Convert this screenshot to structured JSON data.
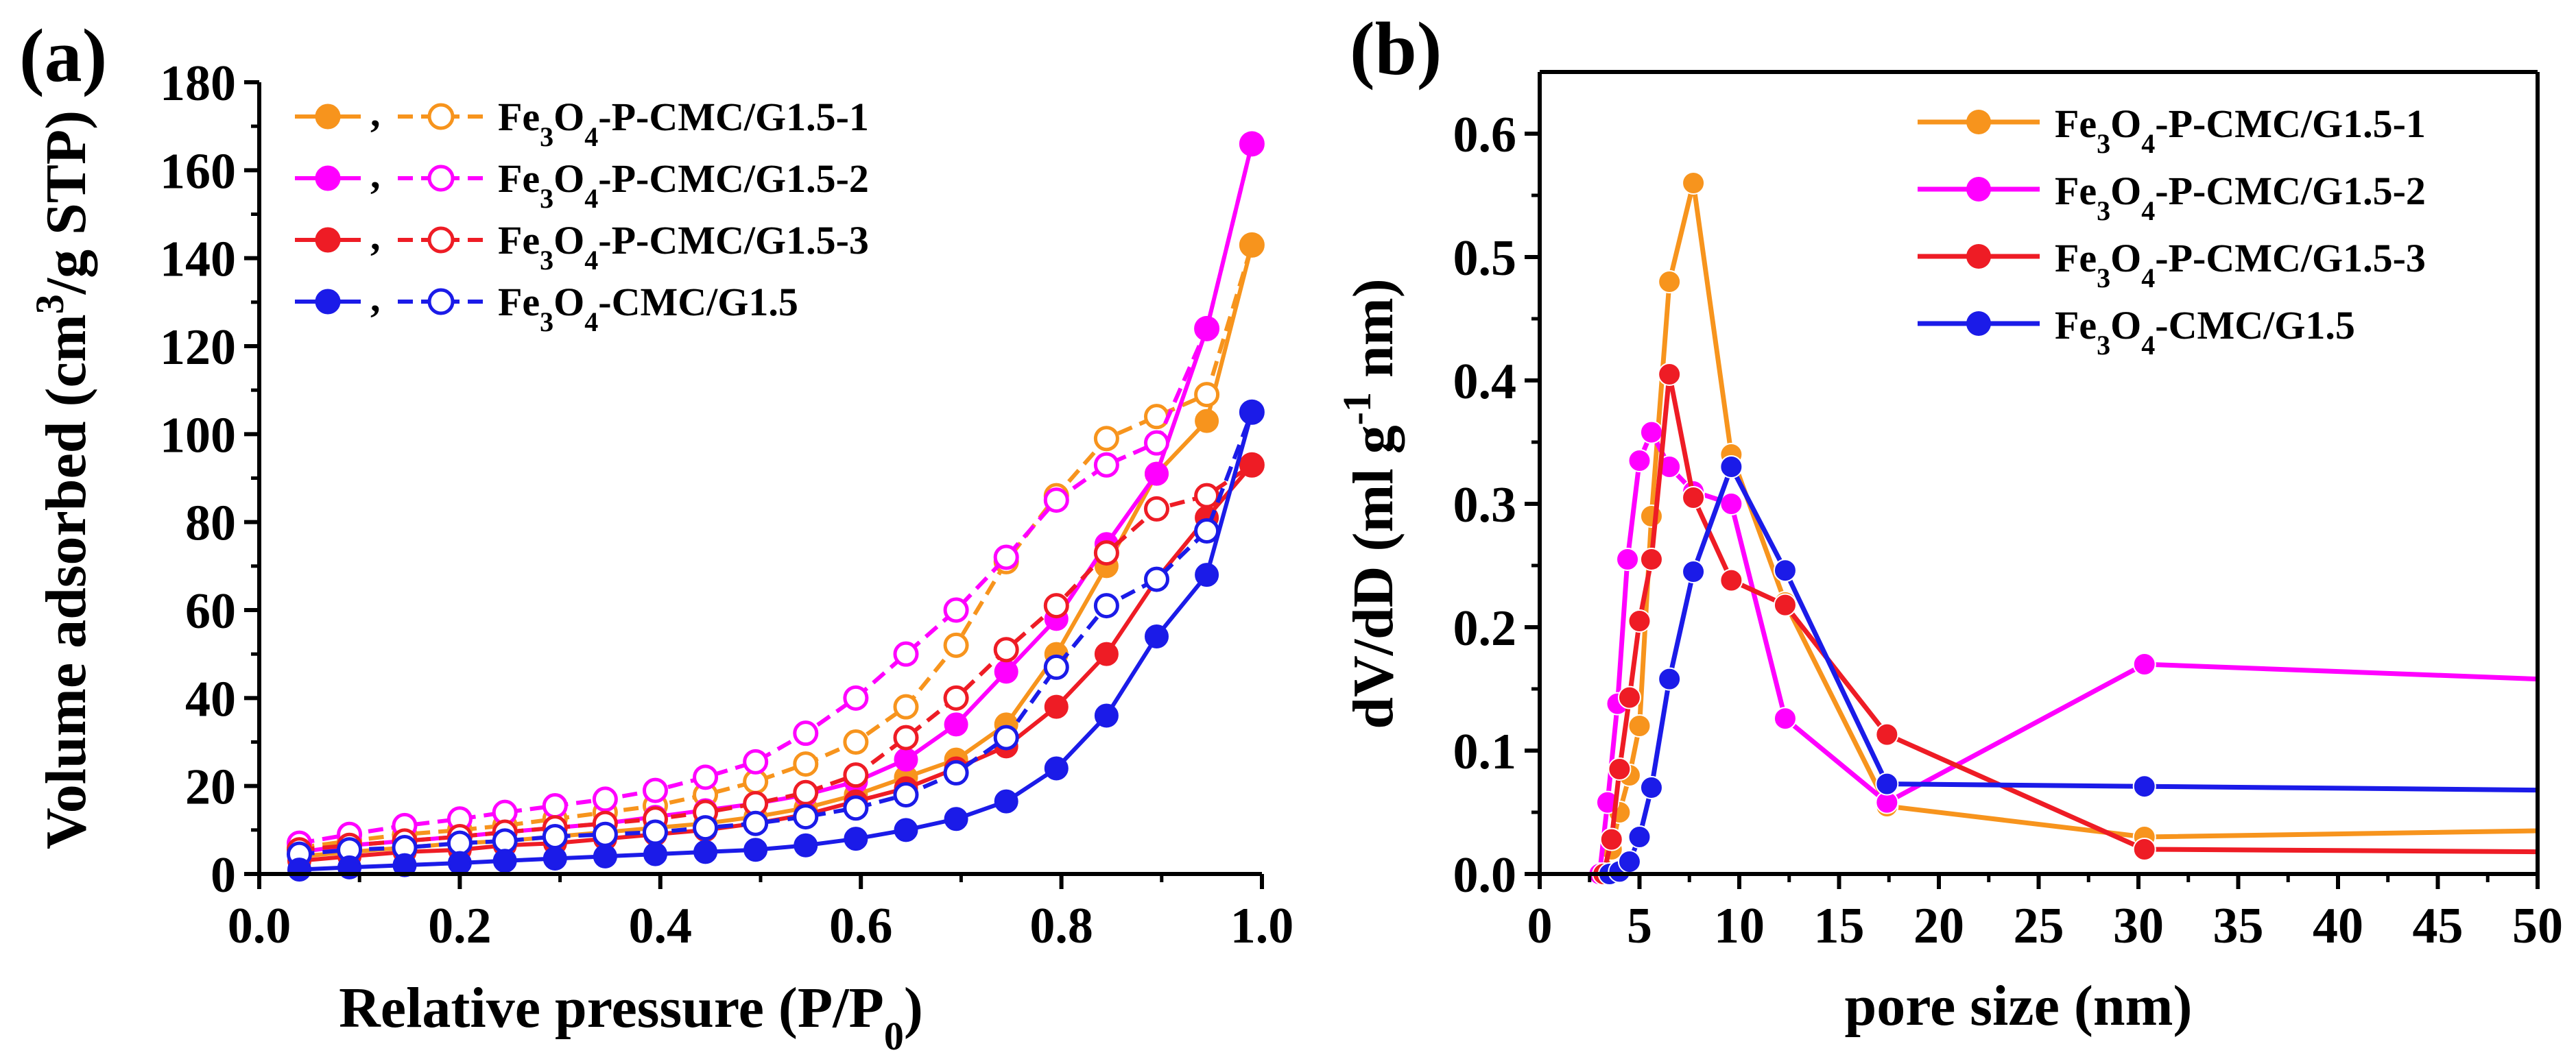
{
  "chart_data": [
    {
      "id": "a",
      "type": "line",
      "panel_label": "(a)",
      "xlabel": "Relative pressure (P/P0)",
      "xlabel_parts": {
        "main": "Relative pressure (P/P",
        "sub": "0",
        "end": ")"
      },
      "ylabel": "Volume adsorbed (cm3/g  STP)",
      "ylabel_parts": {
        "main": "Volume adsorbed (cm",
        "sup": "3",
        "end": "/g  STP)"
      },
      "xlim": [
        0.0,
        1.0
      ],
      "ylim": [
        0,
        180
      ],
      "xticks": [
        "0.0",
        "0.2",
        "0.4",
        "0.6",
        "0.8",
        "1.0"
      ],
      "xtick_values": [
        0.0,
        0.2,
        0.4,
        0.6,
        0.8,
        1.0
      ],
      "yticks": [
        "0",
        "20",
        "40",
        "60",
        "80",
        "100",
        "120",
        "140",
        "160",
        "180"
      ],
      "ytick_values": [
        0,
        20,
        40,
        60,
        80,
        100,
        120,
        140,
        160,
        180
      ],
      "legend_position": "top-left",
      "x": [
        0.04,
        0.09,
        0.145,
        0.2,
        0.245,
        0.295,
        0.345,
        0.395,
        0.445,
        0.495,
        0.545,
        0.595,
        0.645,
        0.695,
        0.745,
        0.795,
        0.845,
        0.895,
        0.945,
        0.99
      ],
      "series": [
        {
          "name": "Fe3O4-P-CMC/G1.5-1",
          "label": {
            "a": "Fe",
            "s1": "3",
            "b": "O",
            "s2": "4",
            "c": "-P-CMC/G1.5-1"
          },
          "color": "#f7941d",
          "adsorption": [
            4,
            5,
            6,
            7,
            7.5,
            8.5,
            9.5,
            10.5,
            11.5,
            13,
            15,
            18,
            22,
            26,
            34,
            50,
            70,
            91,
            103,
            143
          ],
          "desorption": [
            6,
            7.5,
            9,
            10,
            11,
            12.5,
            14,
            15.5,
            18,
            21,
            25,
            30,
            38,
            52,
            71,
            86,
            99,
            104,
            109,
            143
          ]
        },
        {
          "name": "Fe3O4-P-CMC/G1.5-2",
          "label": {
            "a": "Fe",
            "s1": "3",
            "b": "O",
            "s2": "4",
            "c": "-P-CMC/G1.5-2"
          },
          "color": "#ff00ff",
          "adsorption": [
            5,
            6.5,
            7.5,
            8.5,
            9.5,
            10.5,
            11.5,
            13,
            14.5,
            16,
            18,
            21,
            26,
            34,
            46,
            58,
            75,
            91,
            124,
            166
          ],
          "desorption": [
            7,
            9,
            11,
            12.5,
            14,
            15.5,
            17,
            19,
            22,
            25.5,
            32,
            40,
            50,
            60,
            72,
            85,
            93,
            98,
            124,
            166
          ]
        },
        {
          "name": "Fe3O4-P-CMC/G1.5-3",
          "label": {
            "a": "Fe",
            "s1": "3",
            "b": "O",
            "s2": "4",
            "c": "-P-CMC/G1.5-3"
          },
          "color": "#ee1c25",
          "adsorption": [
            3,
            4,
            5,
            5.5,
            6.5,
            7,
            8,
            9,
            10,
            11.5,
            13.5,
            16.5,
            19.5,
            24,
            29,
            38,
            50,
            67,
            81,
            93
          ],
          "desorption": [
            5.5,
            6.5,
            7.5,
            8.5,
            9.5,
            10.5,
            11.5,
            12.5,
            14,
            16,
            18.5,
            22.5,
            31,
            40,
            51,
            61,
            73,
            83,
            86,
            93
          ]
        },
        {
          "name": "Fe3O4-CMC/G1.5",
          "label": {
            "a": "Fe",
            "s1": "3",
            "b": "O",
            "s2": "4",
            "c": "-CMC/G1.5"
          },
          "color": "#1b1be8",
          "adsorption": [
            1,
            1.5,
            2,
            2.5,
            3,
            3.5,
            4,
            4.5,
            5,
            5.5,
            6.5,
            8,
            10,
            12.5,
            16.5,
            24,
            36,
            54,
            68,
            105
          ],
          "desorption": [
            4.5,
            5.5,
            6,
            7,
            7.5,
            8.5,
            9,
            9.5,
            10.5,
            11.5,
            13,
            15,
            18,
            23,
            31,
            47,
            61,
            67,
            78,
            105
          ]
        }
      ]
    },
    {
      "id": "b",
      "type": "line",
      "panel_label": "(b)",
      "xlabel": "pore size (nm)",
      "ylabel": "dV/dD (ml g-1 nm)",
      "ylabel_parts": {
        "main": "dV/dD (ml g",
        "sup": "-1",
        "end": " nm)"
      },
      "xlim": [
        0,
        50
      ],
      "ylim": [
        0.0,
        0.65
      ],
      "xticks": [
        "0",
        "5",
        "10",
        "15",
        "20",
        "25",
        "30",
        "35",
        "40",
        "45",
        "50"
      ],
      "xtick_values": [
        0,
        5,
        10,
        15,
        20,
        25,
        30,
        35,
        40,
        45,
        50
      ],
      "yticks": [
        "0.0",
        "0.1",
        "0.2",
        "0.3",
        "0.4",
        "0.5",
        "0.6"
      ],
      "ytick_values": [
        0.0,
        0.1,
        0.2,
        0.3,
        0.4,
        0.5,
        0.6
      ],
      "legend_position": "top-right",
      "series": [
        {
          "name": "Fe3O4-P-CMC/G1.5-1",
          "label": {
            "a": "Fe",
            "s1": "3",
            "b": "O",
            "s2": "4",
            "c": "-P-CMC/G1.5-1"
          },
          "color": "#f7941d",
          "x": [
            3.2,
            3.6,
            4.0,
            4.5,
            5.0,
            5.6,
            6.5,
            7.7,
            9.6,
            12.3,
            17.4,
            30.3,
            50
          ],
          "y": [
            0.0,
            0.02,
            0.05,
            0.08,
            0.12,
            0.29,
            0.48,
            0.56,
            0.34,
            0.22,
            0.055,
            0.03,
            0.035
          ]
        },
        {
          "name": "Fe3O4-P-CMC/G1.5-2",
          "label": {
            "a": "Fe",
            "s1": "3",
            "b": "O",
            "s2": "4",
            "c": "-P-CMC/G1.5-2"
          },
          "color": "#ff00ff",
          "x": [
            3.0,
            3.4,
            3.9,
            4.4,
            5.0,
            5.6,
            6.5,
            7.7,
            9.6,
            12.3,
            17.4,
            30.3,
            50
          ],
          "y": [
            0.0,
            0.058,
            0.138,
            0.255,
            0.335,
            0.358,
            0.33,
            0.31,
            0.3,
            0.126,
            0.058,
            0.17,
            0.158
          ]
        },
        {
          "name": "Fe3O4-P-CMC/G1.5-3",
          "label": {
            "a": "Fe",
            "s1": "3",
            "b": "O",
            "s2": "4",
            "c": "-P-CMC/G1.5-3"
          },
          "color": "#ee1c25",
          "x": [
            3.2,
            3.6,
            4.0,
            4.5,
            5.0,
            5.6,
            6.5,
            7.7,
            9.6,
            12.3,
            17.4,
            30.3,
            50
          ],
          "y": [
            0.0,
            0.028,
            0.085,
            0.143,
            0.205,
            0.255,
            0.405,
            0.305,
            0.238,
            0.218,
            0.113,
            0.02,
            0.018
          ]
        },
        {
          "name": "Fe3O4-CMC/G1.5",
          "label": {
            "a": "Fe",
            "s1": "3",
            "b": "O",
            "s2": "4",
            "c": "-CMC/G1.5"
          },
          "color": "#1b1be8",
          "x": [
            3.5,
            4.0,
            4.5,
            5.0,
            5.6,
            6.5,
            7.7,
            9.6,
            12.3,
            17.4,
            30.3,
            50
          ],
          "y": [
            0.0,
            0.002,
            0.01,
            0.03,
            0.07,
            0.158,
            0.245,
            0.33,
            0.246,
            0.073,
            0.071,
            0.068
          ]
        }
      ]
    }
  ]
}
